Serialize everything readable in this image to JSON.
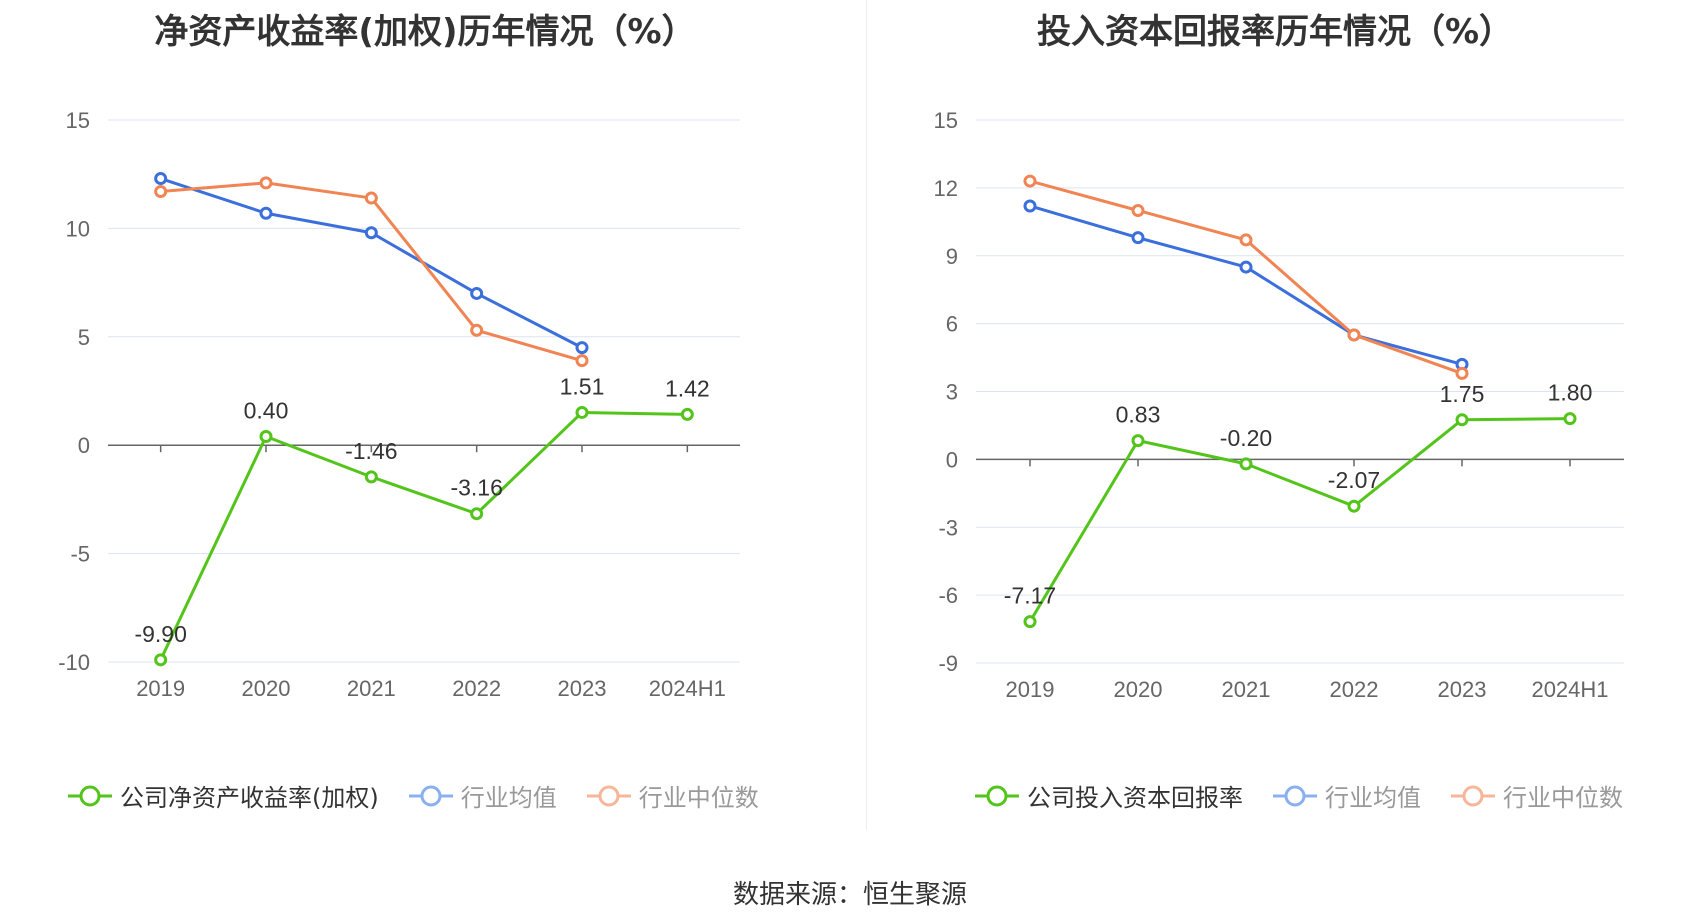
{
  "source": "数据来源：恒生聚源",
  "colors": {
    "company": "#52c41a",
    "industry_avg": "#3a6fdc",
    "industry_median": "#f08453",
    "grid": "#dde3f0",
    "axis": "#666666",
    "tick_text": "#666666",
    "label_text": "#333333"
  },
  "charts": {
    "left": {
      "title": "净资产收益率(加权)历年情况（%）",
      "legend": [
        "公司净资产收益率(加权)",
        "行业均值",
        "行业中位数"
      ]
    },
    "right": {
      "title": "投入资本回报率历年情况（%）",
      "legend": [
        "公司投入资本回报率",
        "行业均值",
        "行业中位数"
      ]
    }
  },
  "chart_data": [
    {
      "type": "line",
      "title": "净资产收益率(加权)历年情况（%）",
      "categories": [
        "2019",
        "2020",
        "2021",
        "2022",
        "2023",
        "2024H1"
      ],
      "ylim": [
        -10,
        15
      ],
      "yticks": [
        15,
        10,
        5,
        0,
        -5,
        -10
      ],
      "grid": true,
      "legend_position": "bottom",
      "series": [
        {
          "name": "公司净资产收益率(加权)",
          "role": "company",
          "values": [
            -9.9,
            0.4,
            -1.46,
            -3.16,
            1.51,
            1.42
          ],
          "labels": [
            "-9.90",
            "0.40",
            "-1.46",
            "-3.16",
            "1.51",
            "1.42"
          ]
        },
        {
          "name": "行业均值",
          "role": "industry_avg",
          "values": [
            12.3,
            10.7,
            9.8,
            7.0,
            4.5,
            null
          ]
        },
        {
          "name": "行业中位数",
          "role": "industry_median",
          "values": [
            11.7,
            12.1,
            11.4,
            5.3,
            3.9,
            null
          ]
        }
      ]
    },
    {
      "type": "line",
      "title": "投入资本回报率历年情况（%）",
      "categories": [
        "2019",
        "2020",
        "2021",
        "2022",
        "2023",
        "2024H1"
      ],
      "ylim": [
        -9,
        15
      ],
      "yticks": [
        15,
        12,
        9,
        6,
        3,
        0,
        -3,
        -6,
        -9
      ],
      "grid": true,
      "legend_position": "bottom",
      "series": [
        {
          "name": "公司投入资本回报率",
          "role": "company",
          "values": [
            -7.17,
            0.83,
            -0.2,
            -2.07,
            1.75,
            1.8
          ],
          "labels": [
            "-7.17",
            "0.83",
            "-0.20",
            "-2.07",
            "1.75",
            "1.80"
          ]
        },
        {
          "name": "行业均值",
          "role": "industry_avg",
          "values": [
            11.2,
            9.8,
            8.5,
            5.5,
            4.2,
            null
          ]
        },
        {
          "name": "行业中位数",
          "role": "industry_median",
          "values": [
            12.3,
            11.0,
            9.7,
            5.5,
            3.8,
            null
          ]
        }
      ]
    }
  ]
}
